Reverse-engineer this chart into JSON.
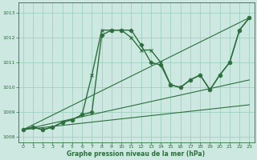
{
  "bg_color": "#cce8e0",
  "grid_color": "#99ccbb",
  "line_color": "#2d6e3e",
  "marker_color": "#2d6e3e",
  "xlabel": "Graphe pression niveau de la mer (hPa)",
  "xlim": [
    -0.5,
    23.5
  ],
  "ylim": [
    1007.8,
    1013.4
  ],
  "xticks": [
    0,
    1,
    2,
    3,
    4,
    5,
    6,
    7,
    8,
    9,
    10,
    11,
    12,
    13,
    14,
    15,
    16,
    17,
    18,
    19,
    20,
    21,
    22,
    23
  ],
  "yticks": [
    1008,
    1009,
    1010,
    1011,
    1012,
    1013
  ],
  "series": [
    {
      "x": [
        0,
        1,
        2,
        3,
        4,
        5,
        6,
        7,
        8,
        9,
        10,
        11,
        12,
        13,
        14,
        15,
        16,
        17,
        18,
        19,
        20,
        21,
        22,
        23
      ],
      "y": [
        1008.3,
        1008.4,
        1008.3,
        1008.4,
        1008.6,
        1008.7,
        1008.9,
        1009.0,
        1012.1,
        1012.3,
        1012.3,
        1012.3,
        1011.7,
        1011.0,
        1010.9,
        1010.1,
        1010.0,
        1010.3,
        1010.5,
        1009.9,
        1010.5,
        1011.0,
        1012.3,
        1012.8
      ],
      "marker": "D",
      "markersize": 2.5,
      "linewidth": 1.0,
      "linestyle": "-"
    },
    {
      "x": [
        0,
        1,
        2,
        3,
        4,
        5,
        6,
        7,
        8,
        9,
        10,
        11,
        12,
        13,
        14,
        15,
        16,
        17,
        18,
        19,
        20,
        21,
        22,
        23
      ],
      "y": [
        1008.3,
        1008.4,
        1008.3,
        1008.4,
        1008.6,
        1008.7,
        1008.9,
        1010.5,
        1012.3,
        1012.3,
        1012.3,
        1012.0,
        1011.5,
        1011.5,
        1011.0,
        1010.1,
        1010.0,
        1010.3,
        1010.5,
        1009.9,
        1010.5,
        1011.0,
        1012.3,
        1012.8
      ],
      "marker": "x",
      "markersize": 3.5,
      "linewidth": 1.0,
      "linestyle": "-"
    },
    {
      "x": [
        0,
        23
      ],
      "y": [
        1008.3,
        1009.3
      ],
      "marker": null,
      "markersize": 0,
      "linewidth": 0.8,
      "linestyle": "-"
    },
    {
      "x": [
        0,
        23
      ],
      "y": [
        1008.3,
        1010.3
      ],
      "marker": null,
      "markersize": 0,
      "linewidth": 0.8,
      "linestyle": "-"
    },
    {
      "x": [
        0,
        23
      ],
      "y": [
        1008.3,
        1012.8
      ],
      "marker": null,
      "markersize": 0,
      "linewidth": 0.8,
      "linestyle": "-"
    }
  ],
  "title_area_color": "#4a9e6e",
  "title_text": "1013",
  "figsize": [
    3.2,
    2.0
  ],
  "dpi": 100
}
